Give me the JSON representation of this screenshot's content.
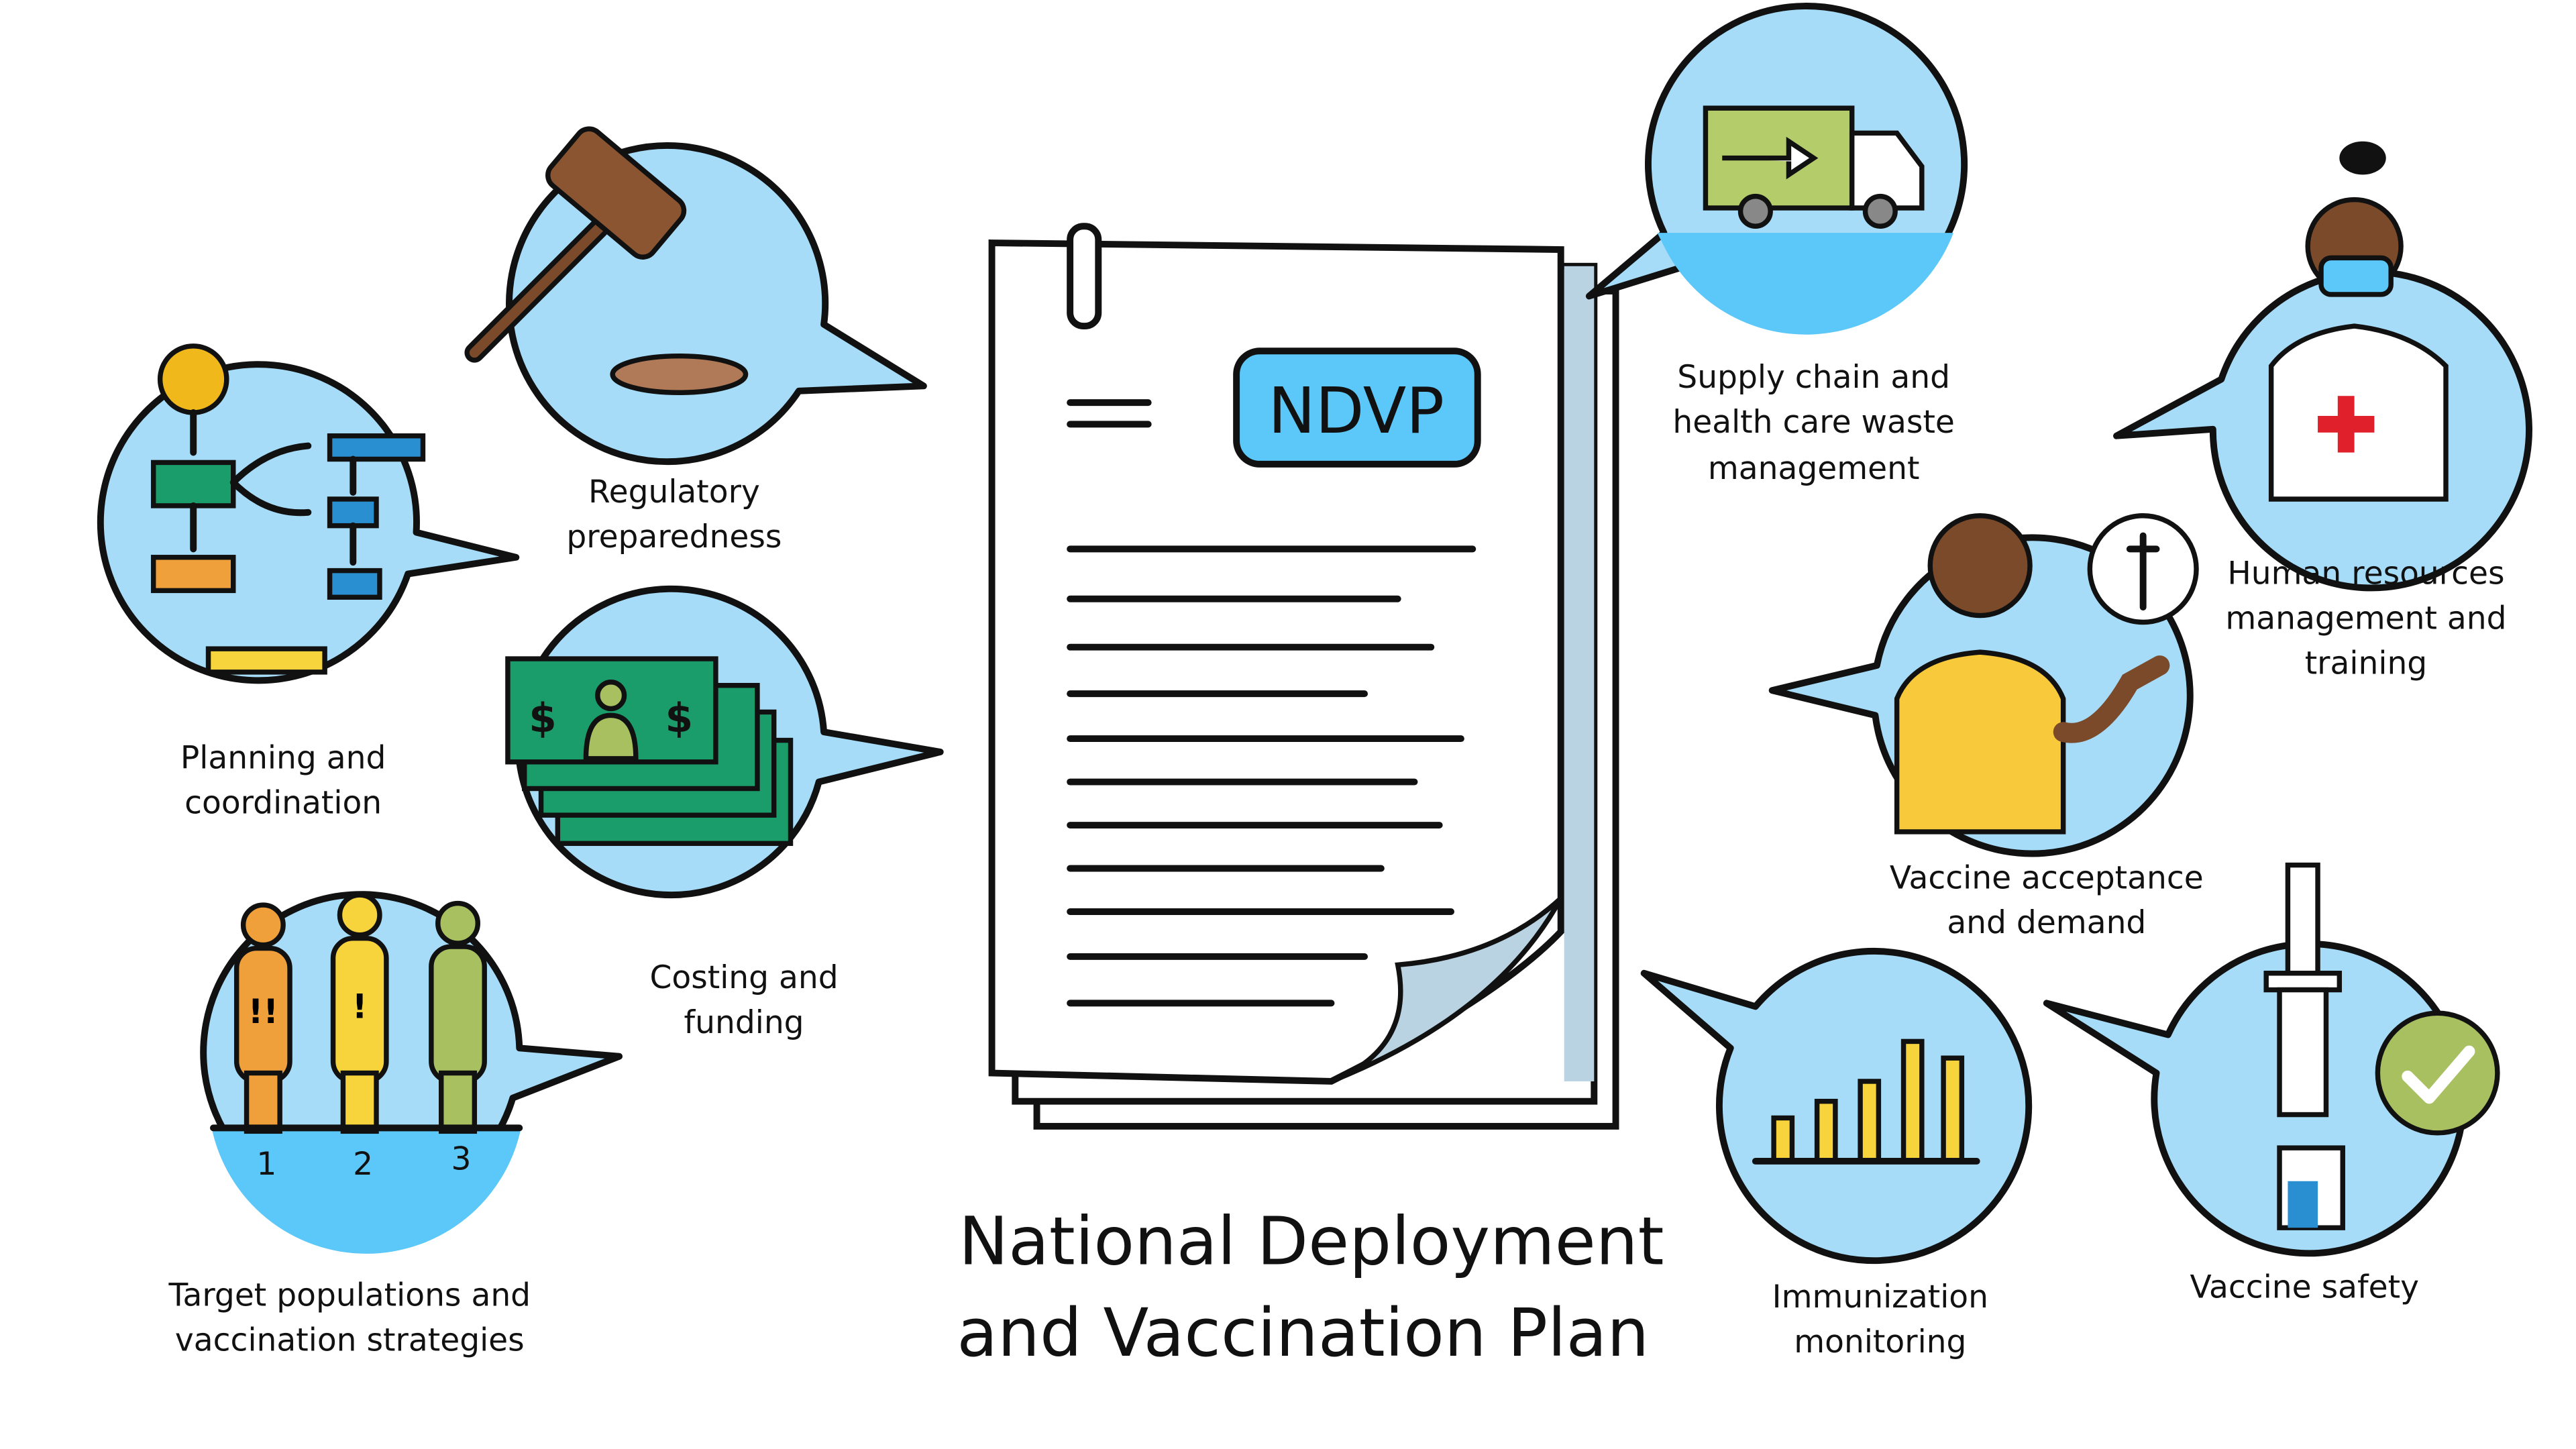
{
  "title": {
    "line1": "National Deployment",
    "line2": "and Vaccination Plan"
  },
  "document": {
    "badge": "NDVP"
  },
  "colors": {
    "bubble": "#a6dcf8",
    "badge": "#5bc8f9",
    "green": "#1a9c6b",
    "orange": "#f0a03a",
    "yellow": "#f7d43b",
    "olive": "#a8c060"
  },
  "components": [
    {
      "id": "planning",
      "icon": "flowchart-icon",
      "lines": [
        "Planning and",
        "coordination"
      ]
    },
    {
      "id": "regulatory",
      "icon": "gavel-icon",
      "lines": [
        "Regulatory",
        "preparedness"
      ]
    },
    {
      "id": "costing",
      "icon": "money-icon",
      "lines": [
        "Costing and",
        "funding"
      ]
    },
    {
      "id": "target",
      "icon": "people-icon",
      "lines": [
        "Target populations and",
        "vaccination strategies"
      ],
      "ranks": [
        "1",
        "2",
        "3"
      ]
    },
    {
      "id": "supply",
      "icon": "truck-icon",
      "lines": [
        "Supply chain and",
        "health care waste",
        "management"
      ]
    },
    {
      "id": "hr",
      "icon": "health-worker-icon",
      "lines": [
        "Human resources",
        "management and",
        "training"
      ]
    },
    {
      "id": "acceptance",
      "icon": "person-speech-icon",
      "lines": [
        "Vaccine acceptance",
        "and demand"
      ]
    },
    {
      "id": "monitoring",
      "icon": "bar-chart-icon",
      "lines": [
        "Immunization",
        "monitoring"
      ]
    },
    {
      "id": "safety",
      "icon": "syringe-check-icon",
      "lines": [
        "Vaccine safety"
      ]
    }
  ]
}
